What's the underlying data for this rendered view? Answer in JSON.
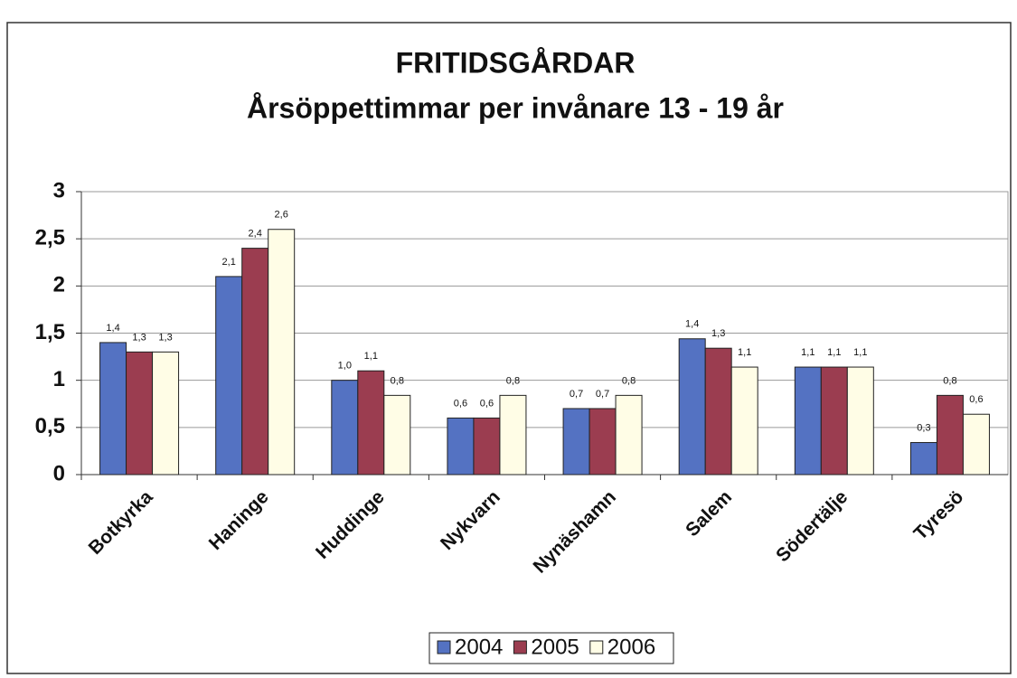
{
  "chart_data": {
    "type": "bar",
    "title": "FRITIDSGÅRDAR",
    "subtitle": "Årsöppettimmar per invånare 13 - 19 år",
    "categories": [
      "Botkyrka",
      "Haninge",
      "Huddinge",
      "Nykvarn",
      "Nynäshamn",
      "Salem",
      "Södertälje",
      "Tyresö"
    ],
    "series": [
      {
        "name": "2004",
        "color": "#5472c2",
        "values": [
          1.4,
          2.1,
          1.0,
          0.6,
          0.7,
          1.44,
          1.14,
          0.34
        ],
        "value_labels": [
          "1,4",
          "2,1",
          "1,0",
          "0,6",
          "0,7",
          "1,4",
          "1,1",
          "0,3"
        ]
      },
      {
        "name": "2005",
        "color": "#9b3d50",
        "values": [
          1.3,
          2.4,
          1.1,
          0.6,
          0.7,
          1.34,
          1.14,
          0.84
        ],
        "value_labels": [
          "1,3",
          "2,4",
          "1,1",
          "0,6",
          "0,7",
          "1,3",
          "1,1",
          "0,8"
        ]
      },
      {
        "name": "2006",
        "color": "#fffde6",
        "values": [
          1.3,
          2.6,
          0.84,
          0.84,
          0.84,
          1.14,
          1.14,
          0.64
        ],
        "value_labels": [
          "1,3",
          "2,6",
          "0,8",
          "0,8",
          "0,8",
          "1,1",
          "1,1",
          "0,6"
        ]
      }
    ],
    "ylim": [
      0,
      3
    ],
    "yticks": [
      0,
      {
        "value": 0.5,
        "label": "0,5"
      },
      1,
      {
        "value": 1.5,
        "label": "1,5"
      },
      2,
      {
        "value": 2.5,
        "label": "2,5"
      },
      3
    ],
    "grid": true,
    "legend": "bottom"
  }
}
